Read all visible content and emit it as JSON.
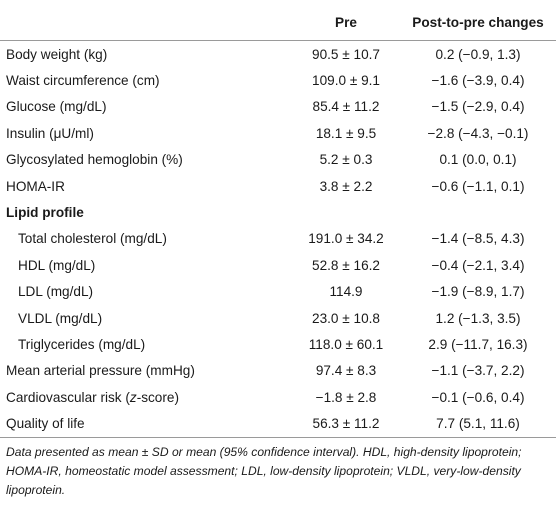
{
  "table": {
    "headers": {
      "label": "",
      "pre": "Pre",
      "change": "Post-to-pre changes"
    },
    "rows": [
      {
        "label": "Body weight (kg)",
        "pre": "90.5 ± 10.7",
        "change": "0.2 (−0.9, 1.3)"
      },
      {
        "label": "Waist circumference (cm)",
        "pre": "109.0 ± 9.1",
        "change": "−1.6 (−3.9, 0.4)"
      },
      {
        "label": "Glucose (mg/dL)",
        "pre": "85.4 ± 11.2",
        "change": "−1.5 (−2.9, 0.4)"
      },
      {
        "label": "Insulin (μU/ml)",
        "pre": "18.1 ± 9.5",
        "change": "−2.8 (−4.3, −0.1)"
      },
      {
        "label": "Glycosylated hemoglobin (%)",
        "pre": "5.2 ± 0.3",
        "change": "0.1 (0.0, 0.1)"
      },
      {
        "label": "HOMA-IR",
        "pre": "3.8 ± 2.2",
        "change": "−0.6 (−1.1, 0.1)"
      },
      {
        "section": "Lipid profile"
      },
      {
        "label": "Total cholesterol (mg/dL)",
        "pre": "191.0 ± 34.2",
        "change": "−1.4 (−8.5, 4.3)",
        "indent": true
      },
      {
        "label": "HDL (mg/dL)",
        "pre": "52.8 ± 16.2",
        "change": "−0.4 (−2.1, 3.4)",
        "indent": true
      },
      {
        "label": "LDL (mg/dL)",
        "pre": "114.9",
        "change": "−1.9 (−8.9, 1.7)",
        "indent": true
      },
      {
        "label": "VLDL (mg/dL)",
        "pre": "23.0 ± 10.8",
        "change": "1.2 (−1.3, 3.5)",
        "indent": true
      },
      {
        "label": "Triglycerides (mg/dL)",
        "pre": "118.0 ± 60.1",
        "change": "2.9 (−11.7, 16.3)",
        "indent": true
      },
      {
        "label": "Mean arterial pressure (mmHg)",
        "pre": "97.4 ± 8.3",
        "change": "−1.1 (−3.7, 2.2)"
      },
      {
        "label": "Cardiovascular risk (z-score)",
        "pre": "−1.8 ± 2.8",
        "change": "−0.1 (−0.6, 0.4)"
      },
      {
        "label": "Quality of life",
        "pre": "56.3 ± 11.2",
        "change": "7.7 (5.1, 11.6)"
      }
    ]
  },
  "footnote": "Data presented as mean ± SD or mean (95% confidence interval). HDL, high-density lipoprotein; HOMA-IR, homeostatic model assessment; LDL, low-density lipoprotein; VLDL, very-low-density lipoprotein."
}
